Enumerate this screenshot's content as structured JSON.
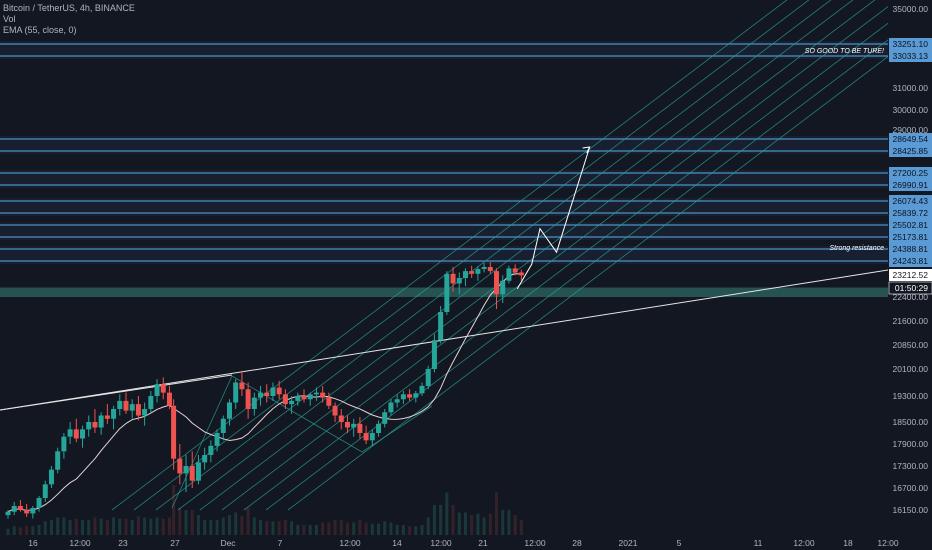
{
  "legend": {
    "symbol": "Bitcoin / TetherUS, 4h, BINANCE",
    "volume": "Vol",
    "ema": "EMA (55, close, 0)"
  },
  "colors": {
    "background": "#131722",
    "candle_up": "#26a69a",
    "candle_down": "#ef5350",
    "level_line": "#4a90c8",
    "level_label_bg": "#5b9bd5",
    "channel": "#26a69a",
    "trendline": "#e6e6e6",
    "ema": "#e6d3d3",
    "support_zone": "#2a5e5a"
  },
  "chart_data": {
    "type": "candlestick",
    "y_axis_ticks": [
      35000,
      31000,
      30000,
      29000,
      22400,
      21600,
      20850,
      20100,
      19300,
      18500,
      17900,
      17300,
      16700,
      16150
    ],
    "y_axis_ticks_text": [
      "35000.00",
      "31000.00",
      "30000.00",
      "29000.00",
      "22400.00",
      "21600.00",
      "20850.00",
      "20100.00",
      "19300.00",
      "18500.00",
      "17900.00",
      "17300.00",
      "16700.00",
      "16150.00"
    ],
    "x_axis_ticks": [
      "16",
      "12:00",
      "23",
      "27",
      "Dec",
      "7",
      "12:00",
      "14",
      "12:00",
      "21",
      "12:00",
      "28",
      "2021",
      "5",
      "11",
      "12:00",
      "18",
      "12:00"
    ],
    "price_levels": [
      {
        "value": 33251.1,
        "label": "33251.10"
      },
      {
        "value": 33033.13,
        "label": "33033.13"
      },
      {
        "value": 28649.54,
        "label": "28649.54"
      },
      {
        "value": 28425.85,
        "label": "28425.85"
      },
      {
        "value": 27200.25,
        "label": "27200.25"
      },
      {
        "value": 26990.91,
        "label": "26990.91"
      },
      {
        "value": 26074.43,
        "label": "26074.43"
      },
      {
        "value": 25839.72,
        "label": "25839.72"
      },
      {
        "value": 25502.81,
        "label": "25502.81"
      },
      {
        "value": 25173.81,
        "label": "25173.81"
      },
      {
        "value": 24388.81,
        "label": "24388.81"
      },
      {
        "value": 24243.81,
        "label": "24243.81"
      }
    ],
    "current_price": {
      "value": 23212.52,
      "label": "23212.52"
    },
    "countdown": "01:50:29",
    "support_zone": {
      "from": 22400,
      "to": 22750
    },
    "annotations": [
      {
        "text": "SO GOOD TO BE TURE!",
        "price": 33140
      },
      {
        "text": "Strong resistance",
        "price": 24520
      }
    ],
    "path_projection": [
      {
        "x": 24.6,
        "y": 22700
      },
      {
        "x": 25.3,
        "y": 24000
      },
      {
        "x": 25.7,
        "y": 25400
      },
      {
        "x": 26.5,
        "y": 24350
      },
      {
        "x": 28.1,
        "y": 28500
      }
    ],
    "candles": [
      {
        "x": 0.0,
        "o": 16000,
        "h": 16150,
        "l": 15900,
        "c": 16100
      },
      {
        "x": 0.3,
        "o": 16100,
        "h": 16350,
        "l": 16000,
        "c": 16250
      },
      {
        "x": 0.6,
        "o": 16250,
        "h": 16400,
        "l": 16100,
        "c": 16150
      },
      {
        "x": 0.9,
        "o": 16150,
        "h": 16300,
        "l": 15950,
        "c": 16050
      },
      {
        "x": 1.2,
        "o": 16050,
        "h": 16250,
        "l": 15900,
        "c": 16200
      },
      {
        "x": 1.5,
        "o": 16200,
        "h": 16500,
        "l": 16100,
        "c": 16450
      },
      {
        "x": 1.8,
        "o": 16450,
        "h": 16900,
        "l": 16350,
        "c": 16800
      },
      {
        "x": 2.1,
        "o": 16800,
        "h": 17300,
        "l": 16700,
        "c": 17200
      },
      {
        "x": 2.4,
        "o": 17200,
        "h": 17800,
        "l": 17100,
        "c": 17700
      },
      {
        "x": 2.7,
        "o": 17700,
        "h": 18200,
        "l": 17500,
        "c": 18100
      },
      {
        "x": 3.0,
        "o": 18100,
        "h": 18500,
        "l": 17900,
        "c": 18300
      },
      {
        "x": 3.3,
        "o": 18300,
        "h": 18600,
        "l": 17950,
        "c": 18050
      },
      {
        "x": 3.6,
        "o": 18050,
        "h": 18400,
        "l": 17800,
        "c": 18300
      },
      {
        "x": 3.9,
        "o": 18300,
        "h": 18700,
        "l": 18100,
        "c": 18500
      },
      {
        "x": 4.2,
        "o": 18500,
        "h": 18900,
        "l": 18200,
        "c": 18350
      },
      {
        "x": 4.5,
        "o": 18350,
        "h": 18800,
        "l": 18150,
        "c": 18700
      },
      {
        "x": 4.8,
        "o": 18700,
        "h": 19050,
        "l": 18450,
        "c": 18600
      },
      {
        "x": 5.1,
        "o": 18600,
        "h": 19000,
        "l": 18300,
        "c": 18900
      },
      {
        "x": 5.4,
        "o": 18900,
        "h": 19350,
        "l": 18700,
        "c": 19150
      },
      {
        "x": 5.7,
        "o": 19150,
        "h": 19400,
        "l": 18750,
        "c": 18850
      },
      {
        "x": 6.0,
        "o": 18850,
        "h": 19200,
        "l": 18600,
        "c": 19050
      },
      {
        "x": 6.3,
        "o": 19050,
        "h": 19300,
        "l": 18550,
        "c": 18700
      },
      {
        "x": 6.6,
        "o": 18700,
        "h": 19100,
        "l": 18400,
        "c": 18900
      },
      {
        "x": 6.9,
        "o": 18900,
        "h": 19450,
        "l": 18800,
        "c": 19300
      },
      {
        "x": 7.2,
        "o": 19300,
        "h": 19800,
        "l": 19100,
        "c": 19650
      },
      {
        "x": 7.5,
        "o": 19650,
        "h": 19850,
        "l": 19200,
        "c": 19400
      },
      {
        "x": 7.8,
        "o": 19400,
        "h": 19600,
        "l": 18900,
        "c": 19000
      },
      {
        "x": 8.0,
        "o": 19000,
        "h": 19200,
        "l": 17200,
        "c": 17500
      },
      {
        "x": 8.3,
        "o": 17500,
        "h": 17900,
        "l": 16800,
        "c": 17100
      },
      {
        "x": 8.6,
        "o": 17100,
        "h": 17600,
        "l": 16600,
        "c": 17300
      },
      {
        "x": 8.9,
        "o": 17300,
        "h": 17700,
        "l": 16700,
        "c": 16900
      },
      {
        "x": 9.2,
        "o": 16900,
        "h": 17600,
        "l": 16800,
        "c": 17400
      },
      {
        "x": 9.5,
        "o": 17400,
        "h": 17800,
        "l": 17200,
        "c": 17600
      },
      {
        "x": 9.8,
        "o": 17600,
        "h": 18000,
        "l": 17400,
        "c": 17850
      },
      {
        "x": 10.1,
        "o": 17850,
        "h": 18300,
        "l": 17700,
        "c": 18200
      },
      {
        "x": 10.4,
        "o": 18200,
        "h": 18700,
        "l": 18000,
        "c": 18600
      },
      {
        "x": 10.7,
        "o": 18600,
        "h": 19200,
        "l": 18400,
        "c": 19100
      },
      {
        "x": 11.0,
        "o": 19100,
        "h": 19800,
        "l": 18900,
        "c": 19700
      },
      {
        "x": 11.3,
        "o": 19700,
        "h": 20050,
        "l": 19300,
        "c": 19500
      },
      {
        "x": 11.6,
        "o": 19500,
        "h": 19700,
        "l": 18600,
        "c": 18900
      },
      {
        "x": 11.9,
        "o": 18900,
        "h": 19400,
        "l": 18700,
        "c": 19250
      },
      {
        "x": 12.2,
        "o": 19250,
        "h": 19600,
        "l": 19000,
        "c": 19400
      },
      {
        "x": 12.5,
        "o": 19400,
        "h": 19650,
        "l": 19100,
        "c": 19300
      },
      {
        "x": 12.8,
        "o": 19300,
        "h": 19700,
        "l": 19150,
        "c": 19550
      },
      {
        "x": 13.1,
        "o": 19550,
        "h": 19750,
        "l": 19200,
        "c": 19350
      },
      {
        "x": 13.4,
        "o": 19350,
        "h": 19500,
        "l": 18900,
        "c": 19050
      },
      {
        "x": 13.7,
        "o": 19050,
        "h": 19300,
        "l": 18750,
        "c": 19150
      },
      {
        "x": 14.0,
        "o": 19150,
        "h": 19400,
        "l": 19000,
        "c": 19300
      },
      {
        "x": 14.3,
        "o": 19300,
        "h": 19500,
        "l": 19100,
        "c": 19200
      },
      {
        "x": 14.6,
        "o": 19200,
        "h": 19400,
        "l": 19000,
        "c": 19350
      },
      {
        "x": 14.9,
        "o": 19350,
        "h": 19550,
        "l": 19150,
        "c": 19400
      },
      {
        "x": 15.2,
        "o": 19400,
        "h": 19600,
        "l": 19100,
        "c": 19250
      },
      {
        "x": 15.5,
        "o": 19250,
        "h": 19400,
        "l": 18900,
        "c": 19000
      },
      {
        "x": 15.8,
        "o": 19000,
        "h": 19100,
        "l": 18500,
        "c": 18700
      },
      {
        "x": 16.1,
        "o": 18700,
        "h": 18900,
        "l": 18300,
        "c": 18500
      },
      {
        "x": 16.4,
        "o": 18500,
        "h": 18700,
        "l": 18200,
        "c": 18350
      },
      {
        "x": 16.7,
        "o": 18350,
        "h": 18600,
        "l": 18100,
        "c": 18450
      },
      {
        "x": 17.0,
        "o": 18450,
        "h": 18650,
        "l": 18050,
        "c": 18200
      },
      {
        "x": 17.3,
        "o": 18200,
        "h": 18400,
        "l": 17900,
        "c": 18000
      },
      {
        "x": 17.6,
        "o": 18000,
        "h": 18300,
        "l": 17850,
        "c": 18200
      },
      {
        "x": 17.9,
        "o": 18200,
        "h": 18550,
        "l": 18100,
        "c": 18450
      },
      {
        "x": 18.2,
        "o": 18450,
        "h": 18900,
        "l": 18350,
        "c": 18800
      },
      {
        "x": 18.5,
        "o": 18800,
        "h": 19200,
        "l": 18700,
        "c": 19100
      },
      {
        "x": 18.8,
        "o": 19100,
        "h": 19350,
        "l": 18950,
        "c": 19200
      },
      {
        "x": 19.1,
        "o": 19200,
        "h": 19450,
        "l": 19050,
        "c": 19350
      },
      {
        "x": 19.4,
        "o": 19350,
        "h": 19500,
        "l": 19150,
        "c": 19250
      },
      {
        "x": 19.7,
        "o": 19250,
        "h": 19450,
        "l": 19100,
        "c": 19380
      },
      {
        "x": 20.0,
        "o": 19380,
        "h": 19700,
        "l": 19300,
        "c": 19600
      },
      {
        "x": 20.3,
        "o": 19600,
        "h": 20200,
        "l": 19500,
        "c": 20100
      },
      {
        "x": 20.6,
        "o": 20100,
        "h": 21200,
        "l": 20000,
        "c": 21000
      },
      {
        "x": 20.9,
        "o": 21000,
        "h": 22100,
        "l": 20900,
        "c": 21900
      },
      {
        "x": 21.2,
        "o": 21900,
        "h": 23500,
        "l": 21800,
        "c": 23300
      },
      {
        "x": 21.5,
        "o": 23300,
        "h": 23800,
        "l": 22600,
        "c": 22900
      },
      {
        "x": 21.8,
        "o": 22900,
        "h": 23400,
        "l": 22500,
        "c": 23100
      },
      {
        "x": 22.1,
        "o": 23100,
        "h": 23700,
        "l": 22800,
        "c": 23500
      },
      {
        "x": 22.4,
        "o": 23500,
        "h": 23900,
        "l": 23100,
        "c": 23300
      },
      {
        "x": 22.7,
        "o": 23300,
        "h": 23850,
        "l": 23000,
        "c": 23650
      },
      {
        "x": 23.0,
        "o": 23650,
        "h": 24100,
        "l": 23400,
        "c": 23800
      },
      {
        "x": 23.3,
        "o": 23800,
        "h": 24150,
        "l": 23300,
        "c": 23500
      },
      {
        "x": 23.6,
        "o": 23500,
        "h": 23700,
        "l": 22000,
        "c": 22500
      },
      {
        "x": 23.9,
        "o": 22500,
        "h": 23200,
        "l": 22200,
        "c": 23000
      },
      {
        "x": 24.2,
        "o": 23000,
        "h": 23900,
        "l": 22900,
        "c": 23700
      },
      {
        "x": 24.5,
        "o": 23700,
        "h": 24000,
        "l": 23200,
        "c": 23400
      },
      {
        "x": 24.8,
        "o": 23400,
        "h": 23600,
        "l": 23000,
        "c": 23200
      }
    ]
  }
}
